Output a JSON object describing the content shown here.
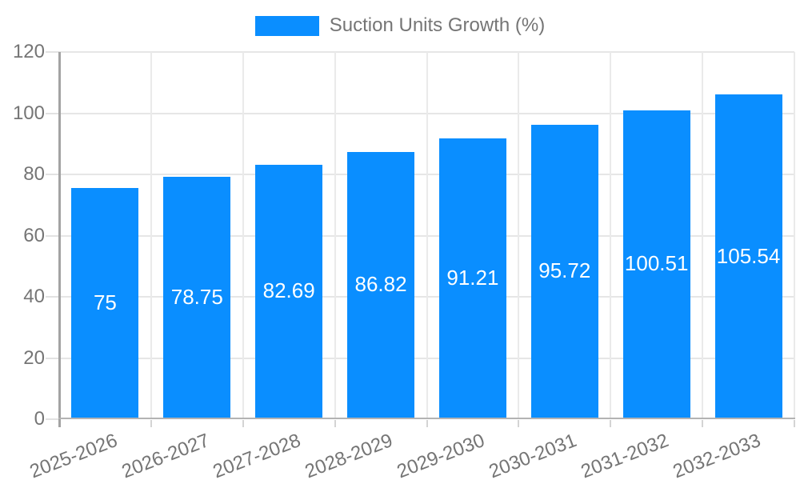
{
  "chart_data": {
    "type": "bar",
    "title": "",
    "legend": {
      "label": "Suction Units Growth (%)",
      "position": "top"
    },
    "categories": [
      "2025-2026",
      "2026-2027",
      "2027-2028",
      "2028-2029",
      "2029-2030",
      "2030-2031",
      "2031-2032",
      "2032-2033"
    ],
    "series": [
      {
        "name": "Suction Units Growth (%)",
        "values": [
          75,
          78.75,
          82.69,
          86.82,
          91.21,
          95.72,
          100.51,
          105.54
        ],
        "value_labels": [
          "75",
          "78.75",
          "82.69",
          "86.82",
          "91.21",
          "95.72",
          "100.51",
          "105.54"
        ]
      }
    ],
    "xlabel": "",
    "ylabel": "",
    "ylim": [
      0,
      120
    ],
    "yticks": [
      0,
      20,
      40,
      60,
      80,
      100,
      120
    ],
    "grid": true,
    "colors": {
      "bar": "#0a8eff",
      "value_label": "#ffffff",
      "axis_text": "#757575",
      "gridline": "#e6e6e6",
      "axis_line": "#a3a3a3",
      "background": "#ffffff"
    }
  }
}
